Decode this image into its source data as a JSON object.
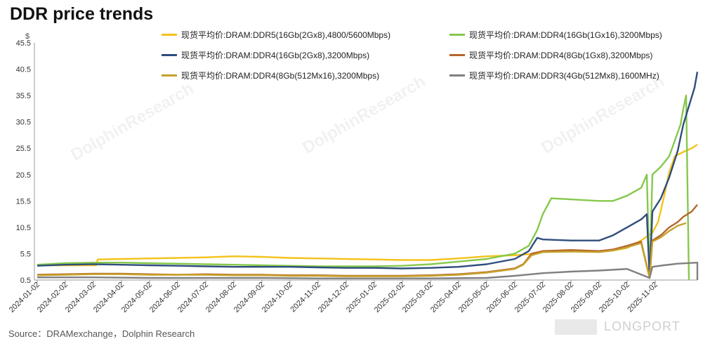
{
  "title": "DDR price trends",
  "source": "Source：DRAMexchange，Dolphin  Research",
  "watermark": "DolphinResearch",
  "corner_brand": "LONGPORT",
  "chart_data": {
    "type": "line",
    "ylabel": "$",
    "ylim": [
      0.5,
      45.5
    ],
    "yticks": [
      "0.5",
      "5.5",
      "10.5",
      "15.5",
      "20.5",
      "25.5",
      "30.5",
      "35.5",
      "40.5",
      "45.5"
    ],
    "x": [
      "2024-01-02",
      "2024-02-02",
      "2024-03-02",
      "2024-04-02",
      "2024-05-02",
      "2024-06-02",
      "2024-07-02",
      "2024-08-02",
      "2024-09-02",
      "2024-10-02",
      "2024-11-02",
      "2024-12-02",
      "2025-01-02",
      "2025-02-02",
      "2025-03-02",
      "2025-04-02",
      "2025-05-02",
      "2025-06-02",
      "2025-07-02",
      "2025-08-02",
      "2025-09-02",
      "2025-10-02",
      "2025-11-02"
    ],
    "grid": false,
    "legend_position": "top",
    "series": [
      {
        "name": "现货平均价:DRAM:DDR5(16Gb(2Gx8),4800/5600Mbps)",
        "color": "#f5c21b",
        "points": [
          [
            0,
            3.3
          ],
          [
            2.1,
            3.3
          ],
          [
            2.15,
            4.4
          ],
          [
            3,
            4.5
          ],
          [
            4,
            4.6
          ],
          [
            5,
            4.7
          ],
          [
            6,
            4.8
          ],
          [
            7,
            5.0
          ],
          [
            8,
            4.9
          ],
          [
            9,
            4.7
          ],
          [
            10,
            4.6
          ],
          [
            11,
            4.5
          ],
          [
            12,
            4.4
          ],
          [
            13,
            4.3
          ],
          [
            14,
            4.3
          ],
          [
            15,
            4.6
          ],
          [
            16,
            5.0
          ],
          [
            17,
            5.2
          ],
          [
            17.5,
            5.4
          ],
          [
            18,
            5.8
          ],
          [
            19,
            6.0
          ],
          [
            20,
            5.9
          ],
          [
            20.5,
            6.1
          ],
          [
            21,
            6.6
          ],
          [
            21.5,
            8.0
          ],
          [
            21.9,
            9.5
          ],
          [
            22.1,
            11.5
          ],
          [
            22.3,
            16.0
          ],
          [
            22.5,
            21.0
          ],
          [
            22.7,
            24.0
          ],
          [
            23,
            24.8
          ],
          [
            23.3,
            25.5
          ],
          [
            23.5,
            26.2
          ]
        ]
      },
      {
        "name": "现货平均价:DRAM:DDR4(16Gb(1Gx16),3200Mbps)",
        "color": "#86c84c",
        "points": [
          [
            0,
            3.4
          ],
          [
            1,
            3.7
          ],
          [
            2,
            3.8
          ],
          [
            3,
            3.8
          ],
          [
            4,
            3.7
          ],
          [
            5,
            3.6
          ],
          [
            6,
            3.5
          ],
          [
            7,
            3.4
          ],
          [
            8,
            3.3
          ],
          [
            9,
            3.2
          ],
          [
            10,
            3.1
          ],
          [
            11,
            3.1
          ],
          [
            12,
            3.1
          ],
          [
            13,
            3.2
          ],
          [
            14,
            3.5
          ],
          [
            15,
            4.0
          ],
          [
            16,
            4.5
          ],
          [
            17,
            5.5
          ],
          [
            17.5,
            7.0
          ],
          [
            17.8,
            10.0
          ],
          [
            18,
            13.0
          ],
          [
            18.3,
            16.0
          ],
          [
            19,
            15.8
          ],
          [
            20,
            15.5
          ],
          [
            20.5,
            15.5
          ],
          [
            21,
            16.5
          ],
          [
            21.5,
            18.0
          ],
          [
            21.7,
            20.5
          ],
          [
            21.8,
            0.9
          ],
          [
            21.9,
            20.5
          ],
          [
            22.2,
            22.0
          ],
          [
            22.5,
            24.0
          ],
          [
            22.7,
            27.0
          ],
          [
            22.9,
            30.0
          ],
          [
            23,
            33.0
          ],
          [
            23.1,
            35.5
          ],
          [
            23.2,
            0.5
          ]
        ]
      },
      {
        "name": "现货平均价:DRAM:DDR4(16Gb(2Gx8),3200Mbps)",
        "color": "#2f4e7e",
        "points": [
          [
            0,
            3.2
          ],
          [
            1,
            3.4
          ],
          [
            2,
            3.5
          ],
          [
            3,
            3.4
          ],
          [
            4,
            3.3
          ],
          [
            5,
            3.2
          ],
          [
            6,
            3.1
          ],
          [
            7,
            3.0
          ],
          [
            8,
            3.0
          ],
          [
            9,
            3.0
          ],
          [
            10,
            2.9
          ],
          [
            11,
            2.8
          ],
          [
            12,
            2.8
          ],
          [
            13,
            2.7
          ],
          [
            14,
            2.8
          ],
          [
            15,
            3.0
          ],
          [
            16,
            3.5
          ],
          [
            17,
            4.5
          ],
          [
            17.5,
            6.0
          ],
          [
            17.8,
            8.5
          ],
          [
            18,
            8.2
          ],
          [
            19,
            8.0
          ],
          [
            20,
            8.0
          ],
          [
            20.5,
            9.0
          ],
          [
            21,
            10.5
          ],
          [
            21.5,
            12.0
          ],
          [
            21.7,
            13.0
          ],
          [
            21.8,
            0.9
          ],
          [
            21.9,
            13.5
          ],
          [
            22.2,
            16.0
          ],
          [
            22.5,
            20.0
          ],
          [
            22.8,
            25.0
          ],
          [
            23,
            30.0
          ],
          [
            23.2,
            33.5
          ],
          [
            23.4,
            37.0
          ],
          [
            23.5,
            40.0
          ]
        ]
      },
      {
        "name": "现货平均价:DRAM:DDR4(8Gb(1Gx8),3200Mbps)",
        "color": "#b5662e",
        "points": [
          [
            0,
            1.5
          ],
          [
            1,
            1.6
          ],
          [
            2,
            1.7
          ],
          [
            3,
            1.7
          ],
          [
            4,
            1.6
          ],
          [
            5,
            1.5
          ],
          [
            6,
            1.6
          ],
          [
            7,
            1.5
          ],
          [
            8,
            1.5
          ],
          [
            9,
            1.4
          ],
          [
            10,
            1.4
          ],
          [
            11,
            1.3
          ],
          [
            12,
            1.3
          ],
          [
            13,
            1.3
          ],
          [
            14,
            1.4
          ],
          [
            15,
            1.6
          ],
          [
            16,
            2.0
          ],
          [
            17,
            2.7
          ],
          [
            17.3,
            3.5
          ],
          [
            17.6,
            5.5
          ],
          [
            18,
            6.0
          ],
          [
            19,
            6.2
          ],
          [
            20,
            6.0
          ],
          [
            20.5,
            6.3
          ],
          [
            21,
            7.0
          ],
          [
            21.5,
            7.8
          ],
          [
            21.8,
            0.9
          ],
          [
            21.9,
            8.0
          ],
          [
            22.2,
            9.0
          ],
          [
            22.5,
            10.5
          ],
          [
            22.8,
            11.5
          ],
          [
            23,
            12.5
          ],
          [
            23.3,
            13.5
          ],
          [
            23.5,
            14.8
          ]
        ]
      },
      {
        "name": "现货平均价:DRAM:DDR4(8Gb(512Mx16),3200Mbps)",
        "color": "#c6a12a",
        "points": [
          [
            0,
            1.4
          ],
          [
            1,
            1.5
          ],
          [
            2,
            1.6
          ],
          [
            3,
            1.6
          ],
          [
            4,
            1.5
          ],
          [
            5,
            1.5
          ],
          [
            6,
            1.5
          ],
          [
            7,
            1.4
          ],
          [
            8,
            1.4
          ],
          [
            9,
            1.3
          ],
          [
            10,
            1.3
          ],
          [
            11,
            1.2
          ],
          [
            12,
            1.2
          ],
          [
            13,
            1.2
          ],
          [
            14,
            1.3
          ],
          [
            15,
            1.5
          ],
          [
            16,
            1.9
          ],
          [
            17,
            2.6
          ],
          [
            17.3,
            3.4
          ],
          [
            17.6,
            5.2
          ],
          [
            18,
            5.8
          ],
          [
            19,
            5.9
          ],
          [
            20,
            5.8
          ],
          [
            20.5,
            6.1
          ],
          [
            21,
            6.7
          ],
          [
            21.5,
            7.5
          ],
          [
            21.8,
            0.9
          ],
          [
            21.9,
            7.8
          ],
          [
            22.2,
            8.6
          ],
          [
            22.5,
            9.8
          ],
          [
            22.8,
            10.8
          ],
          [
            23.1,
            11.3
          ]
        ]
      },
      {
        "name": "现货平均价:DRAM:DDR3(4Gb(512Mx8),1600MHz)",
        "color": "#808080",
        "points": [
          [
            0,
            1.0
          ],
          [
            2,
            1.0
          ],
          [
            4,
            0.9
          ],
          [
            6,
            0.9
          ],
          [
            8,
            0.9
          ],
          [
            10,
            0.8
          ],
          [
            12,
            0.8
          ],
          [
            14,
            0.8
          ],
          [
            16,
            0.9
          ],
          [
            17,
            1.3
          ],
          [
            18,
            1.8
          ],
          [
            19,
            2.1
          ],
          [
            20,
            2.3
          ],
          [
            21,
            2.6
          ],
          [
            21.8,
            0.9
          ],
          [
            21.9,
            3.0
          ],
          [
            22.3,
            3.3
          ],
          [
            22.8,
            3.6
          ],
          [
            23.5,
            3.8
          ],
          [
            23.5,
            0.5
          ]
        ]
      }
    ]
  }
}
